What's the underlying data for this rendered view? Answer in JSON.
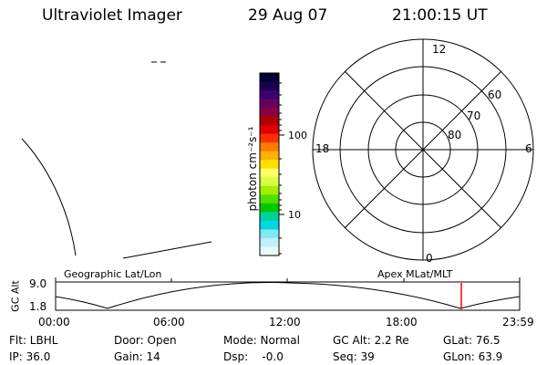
{
  "header": {
    "title": "Ultraviolet Imager",
    "date": "29 Aug 07",
    "time": "21:00:15 UT"
  },
  "colorbar": {
    "unit_label": "photon cm⁻²s⁻¹",
    "tick_labels": [
      "100",
      "10"
    ],
    "scale": "log",
    "colors": [
      "#000033",
      "#1a0050",
      "#3c0070",
      "#650060",
      "#8c0040",
      "#b00000",
      "#e00000",
      "#ff3000",
      "#ff7a00",
      "#ffb000",
      "#ffe000",
      "#ffff66",
      "#d8ff40",
      "#a0f000",
      "#50e000",
      "#00c800",
      "#00d0a0",
      "#00d8e0",
      "#80e8f0",
      "#c0f0f8",
      "#e8f8ff"
    ]
  },
  "polar_plot": {
    "mlt_labels": {
      "top": "12",
      "left": "18",
      "right": "6",
      "bottom": "0"
    },
    "lat_labels": [
      "60",
      "70",
      "80"
    ]
  },
  "timeline": {
    "ylabel": "GC Alt",
    "y_ticks": [
      "9.0",
      "1.8"
    ],
    "left_label": "Geographic Lat/Lon",
    "right_label": "Apex MLat/MLT",
    "x_ticks": [
      "00:00",
      "06:00",
      "12:00",
      "18:00",
      "23:59"
    ],
    "current_marker_time": "21:00:15",
    "marker_color": "#ff0000"
  },
  "footer": {
    "row1": {
      "flt": "Flt: LBHL",
      "door": "Door: Open",
      "mode": "Mode: Normal",
      "gcalt": "GC Alt: 2.2 Re",
      "glat": "GLat: 76.5"
    },
    "row2": {
      "ip": "IP: 36.0",
      "gain": "Gain: 14",
      "dsp": "Dsp:    -0.0",
      "seq": "Seq: 39",
      "glon": "GLon: 63.9"
    }
  }
}
